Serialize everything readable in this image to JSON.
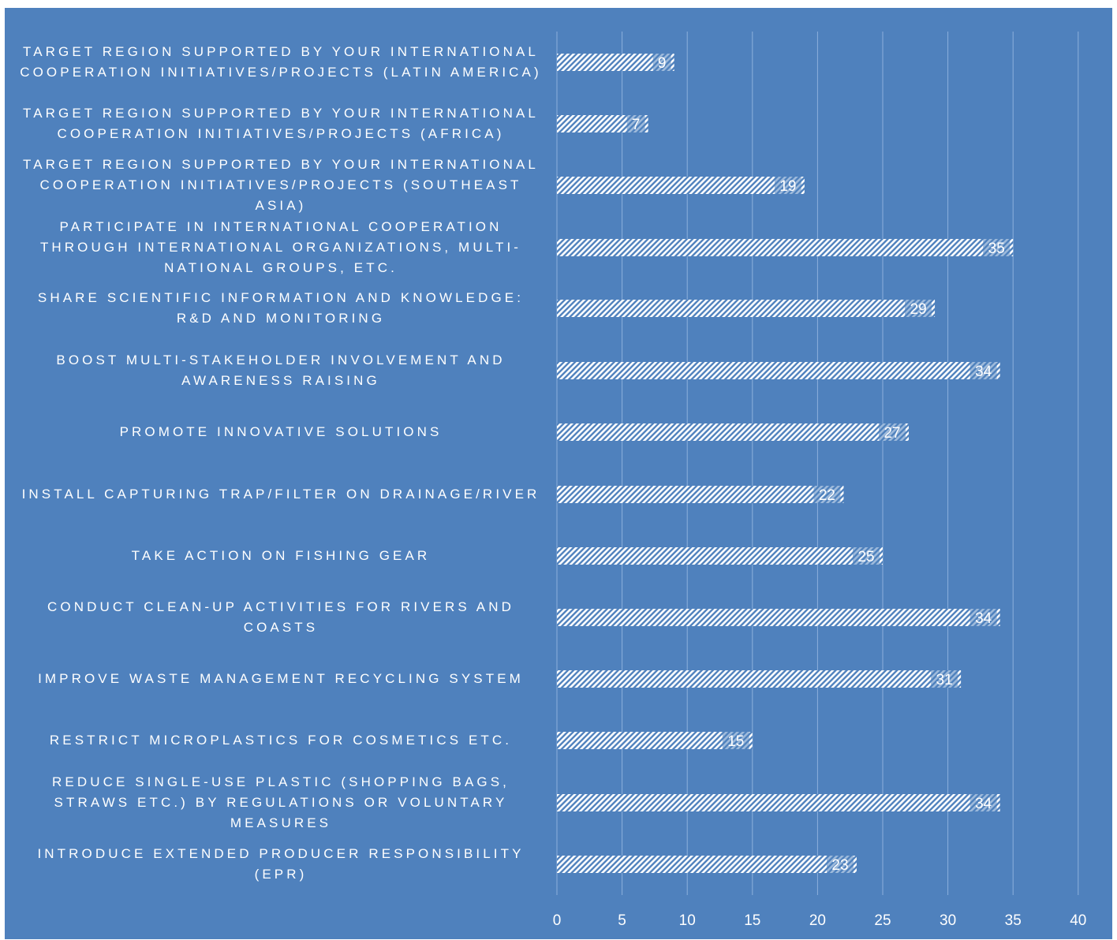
{
  "chart_data": {
    "type": "bar",
    "orientation": "horizontal",
    "categories": [
      "Target region supported by your international cooperation initiatives/projects (Latin America)",
      "Target region supported by your international cooperation initiatives/projects (Africa)",
      "Target region supported by your international cooperation initiatives/projects (Southeast Asia)",
      "Participate in international cooperation through international organizations, multi-national groups, etc.",
      "Share scientific information and knowledge: R&D and monitoring",
      "Boost multi-stakeholder involvement and awareness raising",
      "Promote innovative solutions",
      "Install capturing trap/filter on drainage/river",
      "Take action on fishing gear",
      "Conduct clean-up activities for rivers and coasts",
      "Improve waste management recycling system",
      "Restrict microplastics for cosmetics etc.",
      "Reduce single-use plastic (shopping bags, straws etc.) by regulations or voluntary measures",
      "Introduce extended producer responsibility (EPR)"
    ],
    "values": [
      9,
      7,
      19,
      35,
      29,
      34,
      27,
      22,
      25,
      34,
      31,
      15,
      34,
      23
    ],
    "xlim": [
      0,
      40
    ],
    "xticks": [
      "0",
      "5",
      "10",
      "15",
      "20",
      "25",
      "30",
      "35",
      "40"
    ],
    "grid": "vertical",
    "bar_pattern": "diagonal-hatch",
    "data_labels": true,
    "title": "",
    "xlabel": "",
    "ylabel": ""
  },
  "colors": {
    "background": "#4f81bd",
    "bar": "#ffffff",
    "gridline": "#8db0dc",
    "text": "#ffffff"
  }
}
